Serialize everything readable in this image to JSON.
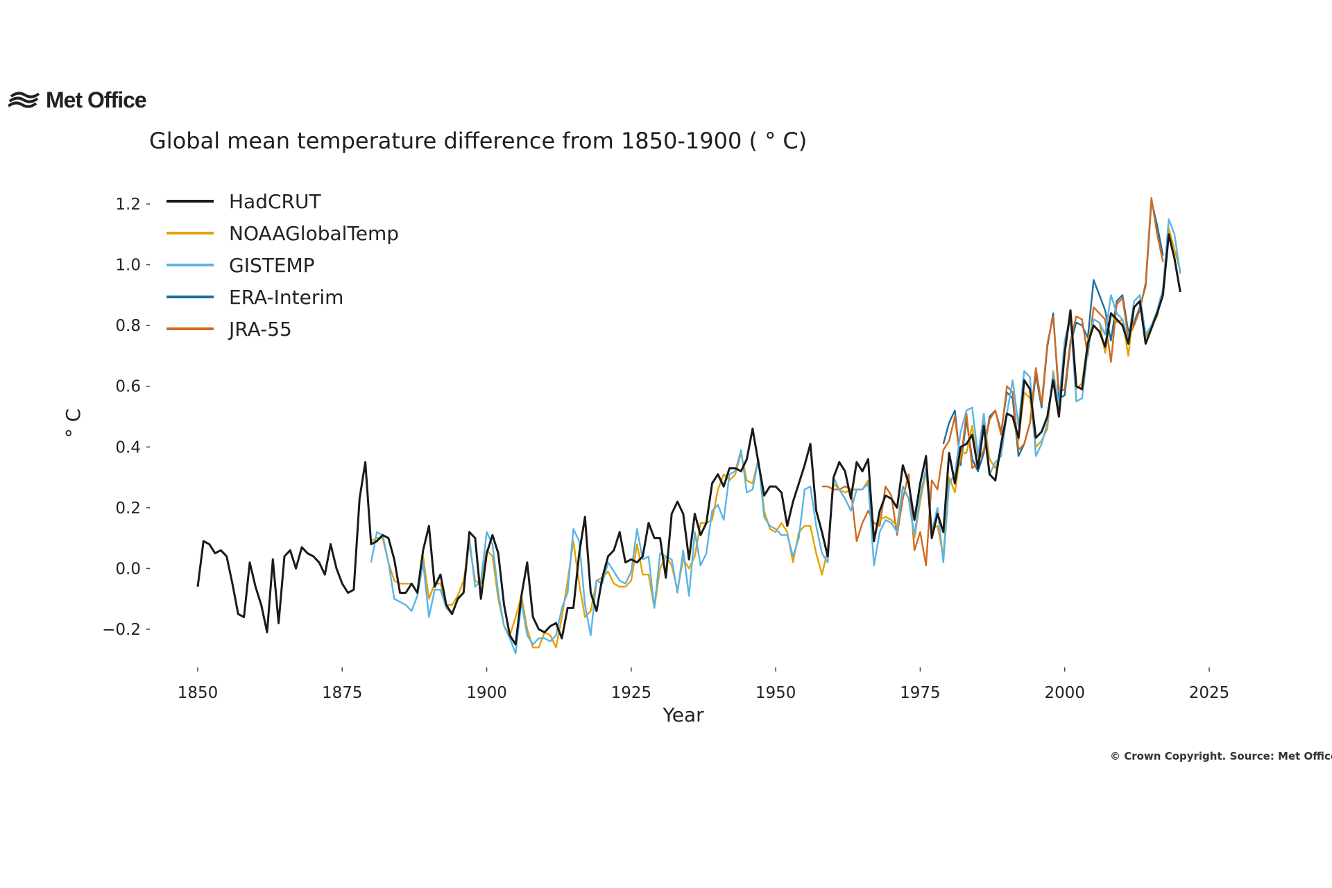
{
  "brand": {
    "name": "Met Office",
    "logo_icon": "met-office-logo-icon"
  },
  "copyright": "© Crown Copyright. Source: Met Office",
  "chart_data": {
    "type": "line",
    "title": "Global mean temperature difference from 1850-1900 ( ° C)",
    "xlabel": "Year",
    "ylabel": "° C",
    "xlim": [
      1845,
      2030
    ],
    "ylim": [
      -0.32,
      1.26
    ],
    "xticks": [
      1850,
      1875,
      1900,
      1925,
      1950,
      1975,
      2000,
      2025
    ],
    "yticks": [
      -0.2,
      0.0,
      0.2,
      0.4,
      0.6,
      0.8,
      1.0,
      1.2
    ],
    "ytick_labels": [
      "−0.2",
      "0.0",
      "0.2",
      "0.4",
      "0.6",
      "0.8",
      "1.0",
      "1.2"
    ],
    "grid": false,
    "legend": "top-left",
    "series": [
      {
        "name": "HadCRUT",
        "color": "#1a1a1a",
        "start": 1850,
        "values": [
          -0.06,
          0.09,
          0.08,
          0.05,
          0.06,
          0.04,
          -0.05,
          -0.15,
          -0.16,
          0.02,
          -0.06,
          -0.12,
          -0.21,
          0.03,
          -0.18,
          0.04,
          0.06,
          0.0,
          0.07,
          0.05,
          0.04,
          0.02,
          -0.02,
          0.08,
          0.0,
          -0.05,
          -0.08,
          -0.07,
          0.23,
          0.35,
          0.08,
          0.09,
          0.11,
          0.1,
          0.03,
          -0.08,
          -0.08,
          -0.05,
          -0.08,
          0.06,
          0.14,
          -0.06,
          -0.02,
          -0.12,
          -0.15,
          -0.1,
          -0.08,
          0.12,
          0.1,
          -0.1,
          0.05,
          0.11,
          0.05,
          -0.12,
          -0.22,
          -0.25,
          -0.09,
          0.02,
          -0.16,
          -0.2,
          -0.21,
          -0.19,
          -0.18,
          -0.23,
          -0.13,
          -0.13,
          0.05,
          0.17,
          -0.08,
          -0.14,
          -0.03,
          0.04,
          0.06,
          0.12,
          0.02,
          0.03,
          0.02,
          0.04,
          0.15,
          0.1,
          0.1,
          -0.03,
          0.18,
          0.22,
          0.18,
          0.03,
          0.18,
          0.11,
          0.15,
          0.28,
          0.31,
          0.27,
          0.33,
          0.33,
          0.32,
          0.36,
          0.46,
          0.35,
          0.24,
          0.27,
          0.27,
          0.25,
          0.14,
          0.22,
          0.28,
          0.34,
          0.41,
          0.19,
          0.12,
          0.04,
          0.3,
          0.35,
          0.32,
          0.23,
          0.35,
          0.32,
          0.36,
          0.09,
          0.19,
          0.24,
          0.23,
          0.2,
          0.34,
          0.28,
          0.16,
          0.28,
          0.37,
          0.1,
          0.18,
          0.12,
          0.38,
          0.28,
          0.4,
          0.41,
          0.44,
          0.33,
          0.47,
          0.31,
          0.29,
          0.41,
          0.51,
          0.5,
          0.43,
          0.62,
          0.59,
          0.43,
          0.45,
          0.5,
          0.62,
          0.5,
          0.71,
          0.85,
          0.6,
          0.59,
          0.74,
          0.8,
          0.78,
          0.73,
          0.84,
          0.82,
          0.8,
          0.74,
          0.86,
          0.88,
          0.74,
          0.79,
          0.84,
          0.9,
          1.1,
          1.02,
          0.91
        ]
      },
      {
        "name": "NOAAGlobalTemp",
        "color": "#e6a100",
        "start": 1880,
        "values": [
          0.09,
          0.1,
          0.1,
          0.02,
          -0.04,
          -0.05,
          -0.05,
          -0.05,
          -0.08,
          0.04,
          -0.1,
          -0.05,
          -0.05,
          -0.12,
          -0.12,
          -0.09,
          -0.04,
          0.08,
          -0.04,
          -0.05,
          0.06,
          0.04,
          -0.1,
          -0.19,
          -0.22,
          -0.16,
          -0.09,
          -0.2,
          -0.26,
          -0.26,
          -0.21,
          -0.22,
          -0.26,
          -0.16,
          -0.04,
          0.09,
          -0.05,
          -0.16,
          -0.14,
          -0.04,
          -0.03,
          -0.01,
          -0.05,
          -0.06,
          -0.06,
          -0.04,
          0.08,
          -0.02,
          -0.02,
          -0.13,
          0.0,
          0.04,
          0.01,
          -0.07,
          0.03,
          0.0,
          0.04,
          0.15,
          0.15,
          0.16,
          0.26,
          0.31,
          0.29,
          0.31,
          0.38,
          0.29,
          0.28,
          0.36,
          0.19,
          0.13,
          0.12,
          0.15,
          0.12,
          0.02,
          0.12,
          0.14,
          0.14,
          0.05,
          -0.02,
          0.06,
          0.28,
          0.26,
          0.25,
          0.26,
          0.26,
          0.26,
          0.29,
          0.11,
          0.16,
          0.17,
          0.16,
          0.14,
          0.27,
          0.23,
          0.1,
          0.22,
          0.32,
          0.13,
          0.14,
          0.04,
          0.3,
          0.25,
          0.38,
          0.38,
          0.47,
          0.33,
          0.5,
          0.36,
          0.33,
          0.38,
          0.51,
          0.5,
          0.42,
          0.58,
          0.56,
          0.4,
          0.42,
          0.46,
          0.65,
          0.53,
          0.74,
          0.82,
          0.59,
          0.61,
          0.75,
          0.82,
          0.81,
          0.71,
          0.84,
          0.81,
          0.82,
          0.7,
          0.86,
          0.88,
          0.76,
          0.8,
          0.83,
          0.92,
          1.12,
          1.05,
          0.98
        ]
      },
      {
        "name": "GISTEMP",
        "color": "#5ab4e6",
        "start": 1880,
        "values": [
          0.02,
          0.12,
          0.11,
          0.02,
          -0.1,
          -0.11,
          -0.12,
          -0.14,
          -0.09,
          0.02,
          -0.16,
          -0.07,
          -0.07,
          -0.13,
          -0.15,
          -0.1,
          -0.08,
          0.1,
          -0.06,
          -0.04,
          0.12,
          0.08,
          -0.08,
          -0.19,
          -0.23,
          -0.28,
          -0.11,
          -0.22,
          -0.25,
          -0.23,
          -0.23,
          -0.24,
          -0.22,
          -0.13,
          -0.08,
          0.13,
          0.09,
          -0.12,
          -0.22,
          -0.04,
          -0.05,
          0.02,
          -0.01,
          -0.04,
          -0.05,
          -0.01,
          0.13,
          0.03,
          0.04,
          -0.13,
          0.05,
          0.04,
          0.03,
          -0.08,
          0.06,
          -0.09,
          0.12,
          0.01,
          0.05,
          0.19,
          0.21,
          0.16,
          0.31,
          0.32,
          0.39,
          0.25,
          0.26,
          0.36,
          0.17,
          0.14,
          0.13,
          0.11,
          0.11,
          0.04,
          0.1,
          0.26,
          0.27,
          0.14,
          0.05,
          0.02,
          0.3,
          0.26,
          0.23,
          0.19,
          0.26,
          0.26,
          0.28,
          0.01,
          0.12,
          0.16,
          0.15,
          0.12,
          0.27,
          0.23,
          0.11,
          0.24,
          0.33,
          0.12,
          0.2,
          0.02,
          0.28,
          0.31,
          0.45,
          0.52,
          0.53,
          0.37,
          0.51,
          0.31,
          0.35,
          0.37,
          0.51,
          0.62,
          0.47,
          0.65,
          0.63,
          0.37,
          0.41,
          0.48,
          0.64,
          0.54,
          0.75,
          0.83,
          0.55,
          0.56,
          0.72,
          0.82,
          0.81,
          0.77,
          0.9,
          0.84,
          0.82,
          0.75,
          0.88,
          0.9,
          0.77,
          0.8,
          0.85,
          0.92,
          1.15,
          1.1,
          0.97
        ]
      },
      {
        "name": "ERA-Interim",
        "color": "#1a6fa0",
        "start": 1979,
        "values": [
          0.41,
          0.48,
          0.52,
          0.34,
          0.49,
          0.36,
          0.32,
          0.38,
          0.5,
          0.52,
          0.45,
          0.58,
          0.56,
          0.37,
          0.41,
          0.48,
          0.64,
          0.53,
          0.73,
          0.84,
          0.56,
          0.57,
          0.74,
          0.81,
          0.8,
          0.76,
          0.95,
          0.9,
          0.85,
          0.75,
          0.88,
          0.9,
          0.78,
          0.81,
          0.86,
          0.93,
          1.21,
          1.13,
          1.03
        ]
      },
      {
        "name": "JRA-55",
        "color": "#d2691e",
        "start": 1958,
        "values": [
          0.27,
          0.27,
          0.26,
          0.26,
          0.27,
          0.26,
          0.09,
          0.15,
          0.19,
          0.15,
          0.14,
          0.27,
          0.24,
          0.11,
          0.23,
          0.31,
          0.06,
          0.12,
          0.01,
          0.29,
          0.26,
          0.39,
          0.42,
          0.5,
          0.35,
          0.51,
          0.33,
          0.35,
          0.39,
          0.49,
          0.52,
          0.44,
          0.6,
          0.58,
          0.39,
          0.41,
          0.48,
          0.66,
          0.54,
          0.74,
          0.83,
          0.58,
          0.59,
          0.75,
          0.83,
          0.82,
          0.7,
          0.86,
          0.84,
          0.82,
          0.68,
          0.87,
          0.89,
          0.76,
          0.8,
          0.85,
          0.94,
          1.22,
          1.1,
          1.01
        ]
      }
    ]
  }
}
